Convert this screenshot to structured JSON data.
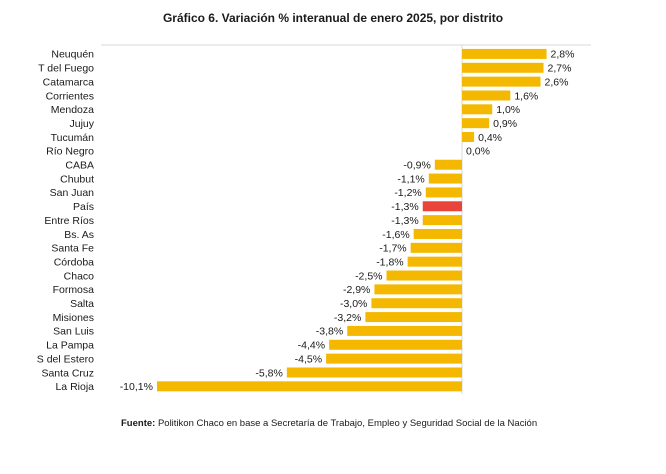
{
  "title": "Gráfico 6. Variación % interanual de enero 2025, por distrito",
  "source": {
    "label": "Fuente:",
    "text": " Politikon Chaco en base a Secretaría de Trabajo, Empleo y Seguridad Social de la Nación"
  },
  "colors": {
    "bar": "#F5B800",
    "highlight": "#E8443A",
    "gridline": "#d9d9d9"
  },
  "chart_data": {
    "type": "bar",
    "orientation": "horizontal",
    "title": "Gráfico 6. Variación % interanual de enero 2025, por distrito",
    "xlabel": "",
    "ylabel": "",
    "xlim": [
      -10.1,
      2.8
    ],
    "highlight": "País",
    "categories": [
      "Neuquén",
      "T del Fuego",
      "Catamarca",
      "Corrientes",
      "Mendoza",
      "Jujuy",
      "Tucumán",
      "Río Negro",
      "CABA",
      "Chubut",
      "San Juan",
      "País",
      "Entre Ríos",
      "Bs. As",
      "Santa Fe",
      "Córdoba",
      "Chaco",
      "Formosa",
      "Salta",
      "Misiones",
      "San Luis",
      "La Pampa",
      "S del Estero",
      "Santa Cruz",
      "La Rioja"
    ],
    "values": [
      2.8,
      2.7,
      2.6,
      1.6,
      1.0,
      0.9,
      0.4,
      0.0,
      -0.9,
      -1.1,
      -1.2,
      -1.3,
      -1.3,
      -1.6,
      -1.7,
      -1.8,
      -2.5,
      -2.9,
      -3.0,
      -3.2,
      -3.8,
      -4.4,
      -4.5,
      -5.8,
      -10.1
    ],
    "value_labels": [
      "2,8%",
      "2,7%",
      "2,6%",
      "1,6%",
      "1,0%",
      "0,9%",
      "0,4%",
      "0,0%",
      "-0,9%",
      "-1,1%",
      "-1,2%",
      "-1,3%",
      "-1,3%",
      "-1,6%",
      "-1,7%",
      "-1,8%",
      "-2,5%",
      "-2,9%",
      "-3,0%",
      "-3,2%",
      "-3,8%",
      "-4,4%",
      "-4,5%",
      "-5,8%",
      "-10,1%"
    ]
  }
}
